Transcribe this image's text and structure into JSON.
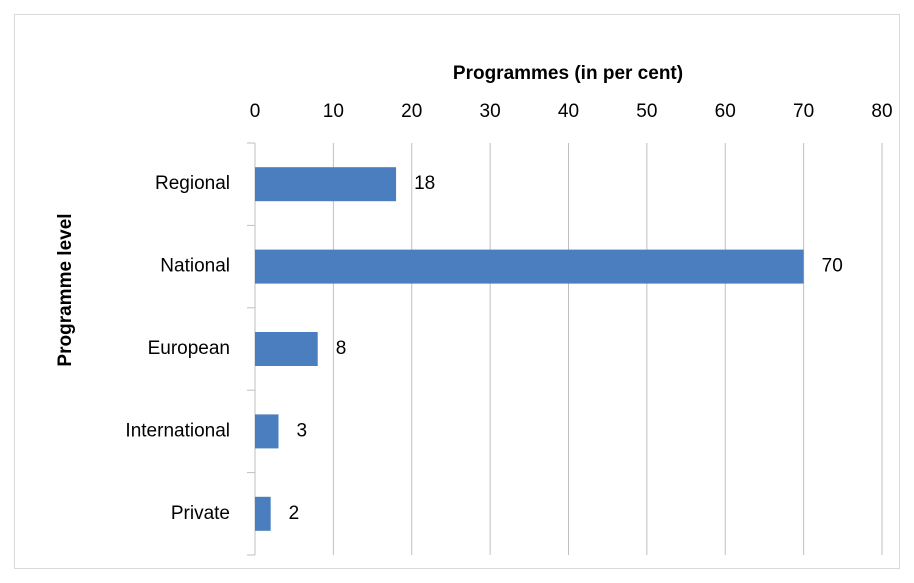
{
  "chart_data": {
    "type": "bar",
    "orientation": "horizontal",
    "x_label": "Programmes (in per cent)",
    "y_label": "Programme level",
    "categories": [
      "Regional",
      "National",
      "European",
      "International",
      "Private"
    ],
    "values": [
      18,
      70,
      8,
      3,
      2
    ],
    "color": "#4a7ebf",
    "xlim": [
      0,
      80
    ],
    "xticks": [
      0,
      10,
      20,
      30,
      40,
      50,
      60,
      70,
      80
    ],
    "grid": true
  }
}
